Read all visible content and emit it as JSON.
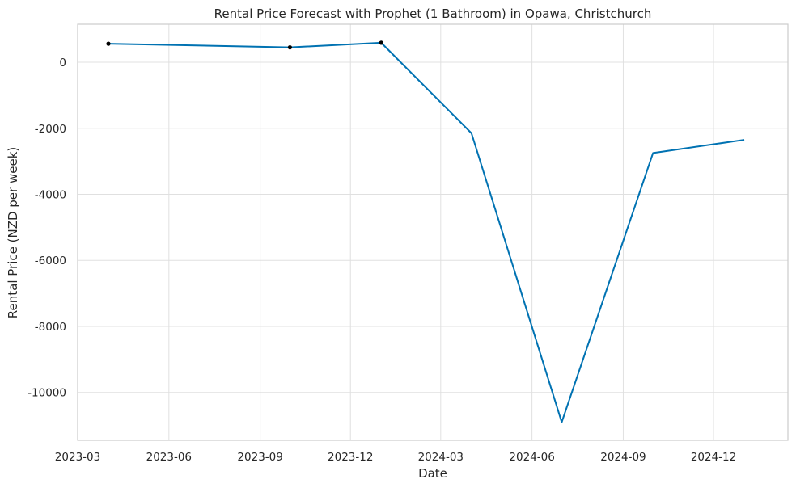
{
  "chart_data": {
    "type": "line",
    "title": "Rental Price Forecast with Prophet (1 Bathroom) in Opawa, Christchurch",
    "xlabel": "Date",
    "ylabel": "Rental Price (NZD per week)",
    "x_ticks": [
      "2023-03",
      "2023-06",
      "2023-09",
      "2023-12",
      "2024-03",
      "2024-06",
      "2024-09",
      "2024-12"
    ],
    "y_ticks": [
      0,
      -2000,
      -4000,
      -6000,
      -8000,
      -10000
    ],
    "xlim": [
      "2023-03-01",
      "2025-02-14"
    ],
    "ylim": [
      -11450,
      1150
    ],
    "grid": true,
    "colors": {
      "forecast_line": "#0072b2",
      "observed_points": "#000000",
      "grid": "#e0e0e0",
      "frame": "#cccccc"
    },
    "series": [
      {
        "role": "forecast",
        "x": [
          "2023-04-01",
          "2023-10-01",
          "2024-01-01",
          "2024-04-01",
          "2024-07-01",
          "2024-10-01",
          "2025-01-01"
        ],
        "y": [
          560,
          450,
          590,
          -2150,
          -10900,
          -2750,
          -2350
        ]
      },
      {
        "role": "observed",
        "x": [
          "2023-04-01",
          "2023-10-01",
          "2024-01-01"
        ],
        "y": [
          560,
          450,
          590
        ]
      }
    ]
  }
}
